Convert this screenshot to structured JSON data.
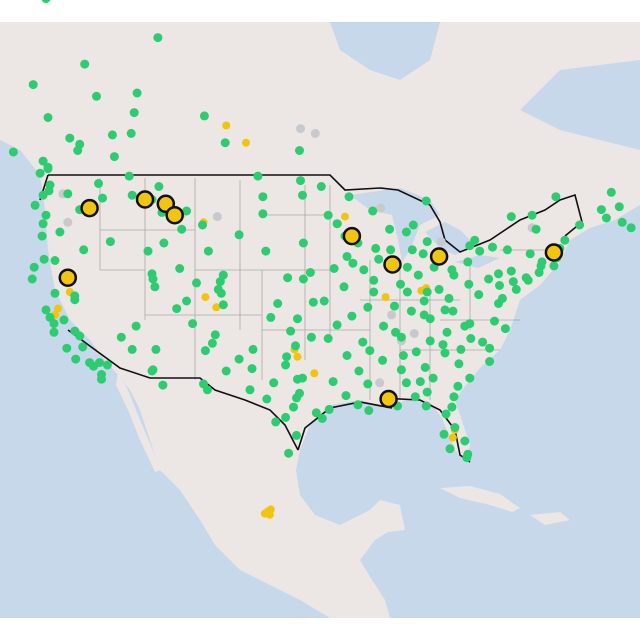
{
  "colors": {
    "water": "#c6d8ea",
    "land": "#ece7e4",
    "border": "#111111",
    "state_lines": "#a9a9a9",
    "green": "#2ecc71",
    "gold": "#f1c40f",
    "gray": "#c7c9cc",
    "highlight": "#f1c40f"
  },
  "markers": {
    "highlighted": [
      [
        40.9,
        -120.5
      ],
      [
        46.0,
        -118.3
      ],
      [
        46.6,
        -112.7
      ],
      [
        46.3,
        -110.6
      ],
      [
        45.5,
        -109.7
      ],
      [
        44.0,
        -91.8
      ],
      [
        41.9,
        -87.7
      ],
      [
        42.5,
        -83.0
      ],
      [
        42.8,
        -71.4
      ],
      [
        31.0,
        -88.1
      ]
    ],
    "gold": [
      [
        20.8,
        -100.3
      ],
      [
        20.6,
        -100.6
      ],
      [
        21.0,
        -100.0
      ],
      [
        20.5,
        -100.1
      ],
      [
        51.5,
        -104.5
      ],
      [
        50.4,
        -102.5
      ],
      [
        39.8,
        -120.3
      ],
      [
        38.5,
        -121.5
      ],
      [
        38.0,
        -121.8
      ],
      [
        39.4,
        -106.6
      ],
      [
        38.6,
        -105.5
      ],
      [
        35.2,
        -97.6
      ],
      [
        34.6,
        -97.3
      ],
      [
        33.2,
        -95.6
      ],
      [
        44.9,
        -93.2
      ],
      [
        45.4,
        -92.5
      ],
      [
        39.4,
        -88.4
      ],
      [
        39.9,
        -84.8
      ],
      [
        40.1,
        -84.3
      ],
      [
        27.6,
        -81.6
      ],
      [
        28.3,
        -81.4
      ],
      [
        45.0,
        -106.8
      ]
    ],
    "gray": [
      [
        51.3,
        -97.0
      ],
      [
        51.0,
        -95.5
      ],
      [
        46.3,
        -118.0
      ],
      [
        47.0,
        -121.0
      ],
      [
        45.0,
        -120.5
      ],
      [
        45.6,
        -109.0
      ],
      [
        45.4,
        -105.4
      ],
      [
        43.6,
        -82.8
      ],
      [
        46.0,
        -88.9
      ],
      [
        44.6,
        -73.6
      ],
      [
        32.4,
        -89.0
      ],
      [
        35.9,
        -86.8
      ],
      [
        38.0,
        -87.8
      ],
      [
        36.5,
        -85.5
      ]
    ],
    "green": [
      [
        47.6,
        -122.3
      ],
      [
        47.2,
        -122.4
      ],
      [
        46.9,
        -123.0
      ],
      [
        48.4,
        -123.3
      ],
      [
        49.2,
        -123.0
      ],
      [
        48.7,
        -122.5
      ],
      [
        46.2,
        -123.8
      ],
      [
        45.5,
        -122.7
      ],
      [
        44.9,
        -123.0
      ],
      [
        44.0,
        -123.1
      ],
      [
        42.3,
        -122.9
      ],
      [
        41.7,
        -123.9
      ],
      [
        40.8,
        -124.1
      ],
      [
        38.4,
        -122.7
      ],
      [
        37.8,
        -122.3
      ],
      [
        37.3,
        -121.9
      ],
      [
        36.6,
        -121.9
      ],
      [
        36.7,
        -119.8
      ],
      [
        35.4,
        -119.0
      ],
      [
        34.4,
        -119.7
      ],
      [
        34.1,
        -118.3
      ],
      [
        33.8,
        -117.9
      ],
      [
        33.1,
        -117.1
      ],
      [
        32.7,
        -117.1
      ],
      [
        34.1,
        -117.3
      ],
      [
        33.9,
        -116.5
      ],
      [
        35.3,
        -120.6
      ],
      [
        39.5,
        -119.8
      ],
      [
        39.2,
        -119.8
      ],
      [
        40.8,
        -111.9
      ],
      [
        41.2,
        -112.0
      ],
      [
        40.2,
        -111.7
      ],
      [
        37.1,
        -113.6
      ],
      [
        36.2,
        -115.1
      ],
      [
        35.2,
        -114.0
      ],
      [
        33.4,
        -112.0
      ],
      [
        33.5,
        -111.9
      ],
      [
        32.2,
        -110.9
      ],
      [
        35.2,
        -111.6
      ],
      [
        35.1,
        -106.6
      ],
      [
        35.7,
        -105.9
      ],
      [
        32.3,
        -106.8
      ],
      [
        31.8,
        -106.4
      ],
      [
        39.7,
        -105.0
      ],
      [
        40.0,
        -105.3
      ],
      [
        38.8,
        -104.8
      ],
      [
        40.6,
        -105.1
      ],
      [
        41.1,
        -104.8
      ],
      [
        42.9,
        -106.3
      ],
      [
        44.8,
        -106.9
      ],
      [
        45.8,
        -108.5
      ],
      [
        46.9,
        -114.0
      ],
      [
        47.5,
        -111.3
      ],
      [
        46.6,
        -112.0
      ],
      [
        45.7,
        -111.0
      ],
      [
        43.6,
        -116.2
      ],
      [
        42.9,
        -112.4
      ],
      [
        47.7,
        -117.4
      ],
      [
        46.7,
        -117.0
      ],
      [
        48.2,
        -114.3
      ],
      [
        48.8,
        -122.5
      ],
      [
        50.7,
        -120.3
      ],
      [
        49.9,
        -119.5
      ],
      [
        51.0,
        -114.1
      ],
      [
        53.5,
        -113.5
      ],
      [
        52.1,
        -106.7
      ],
      [
        50.4,
        -104.6
      ],
      [
        49.9,
        -97.1
      ],
      [
        55.2,
        -118.8
      ],
      [
        56.7,
        -111.4
      ],
      [
        58.8,
        -122.7
      ],
      [
        46.9,
        -96.8
      ],
      [
        46.8,
        -100.8
      ],
      [
        44.1,
        -103.2
      ],
      [
        43.5,
        -96.7
      ],
      [
        41.3,
        -96.0
      ],
      [
        40.8,
        -96.7
      ],
      [
        39.1,
        -94.6
      ],
      [
        38.6,
        -90.2
      ],
      [
        37.2,
        -93.3
      ],
      [
        39.0,
        -95.7
      ],
      [
        37.7,
        -97.3
      ],
      [
        35.5,
        -97.5
      ],
      [
        36.2,
        -95.9
      ],
      [
        35.2,
        -101.8
      ],
      [
        33.6,
        -101.9
      ],
      [
        32.8,
        -96.8
      ],
      [
        32.7,
        -97.3
      ],
      [
        31.5,
        -97.1
      ],
      [
        30.3,
        -97.7
      ],
      [
        29.4,
        -98.5
      ],
      [
        29.8,
        -95.4
      ],
      [
        29.3,
        -94.8
      ],
      [
        27.8,
        -97.4
      ],
      [
        26.2,
        -98.2
      ],
      [
        31.8,
        -102.1
      ],
      [
        30.1,
        -94.1
      ],
      [
        30.5,
        -91.2
      ],
      [
        30.0,
        -90.1
      ],
      [
        32.5,
        -93.7
      ],
      [
        34.7,
        -92.3
      ],
      [
        36.1,
        -94.2
      ],
      [
        35.1,
        -90.0
      ],
      [
        32.3,
        -90.2
      ],
      [
        30.7,
        -88.0
      ],
      [
        33.5,
        -86.8
      ],
      [
        32.4,
        -86.3
      ],
      [
        34.7,
        -86.6
      ],
      [
        36.2,
        -86.8
      ],
      [
        35.0,
        -85.3
      ],
      [
        35.9,
        -83.9
      ],
      [
        38.3,
        -85.8
      ],
      [
        38.0,
        -84.5
      ],
      [
        39.1,
        -84.5
      ],
      [
        39.8,
        -86.2
      ],
      [
        41.1,
        -85.1
      ],
      [
        41.7,
        -86.2
      ],
      [
        41.9,
        -87.6
      ],
      [
        42.3,
        -89.1
      ],
      [
        40.7,
        -89.6
      ],
      [
        39.8,
        -89.6
      ],
      [
        43.1,
        -89.4
      ],
      [
        43.0,
        -87.9
      ],
      [
        44.5,
        -88.0
      ],
      [
        44.9,
        -93.3
      ],
      [
        46.8,
        -92.1
      ],
      [
        44.0,
        -92.5
      ],
      [
        41.6,
        -93.6
      ],
      [
        42.0,
        -91.7
      ],
      [
        41.5,
        -90.6
      ],
      [
        42.5,
        -92.3
      ],
      [
        42.3,
        -83.0
      ],
      [
        42.7,
        -84.6
      ],
      [
        43.0,
        -85.7
      ],
      [
        43.6,
        -84.2
      ],
      [
        44.8,
        -85.6
      ],
      [
        46.5,
        -84.3
      ],
      [
        41.5,
        -81.7
      ],
      [
        41.1,
        -81.5
      ],
      [
        40.0,
        -83.0
      ],
      [
        39.8,
        -84.2
      ],
      [
        41.7,
        -83.5
      ],
      [
        40.4,
        -80.0
      ],
      [
        42.1,
        -80.1
      ],
      [
        40.3,
        -76.9
      ],
      [
        40.0,
        -75.2
      ],
      [
        40.6,
        -75.5
      ],
      [
        41.4,
        -75.7
      ],
      [
        39.3,
        -76.6
      ],
      [
        38.9,
        -77.0
      ],
      [
        37.5,
        -77.4
      ],
      [
        36.9,
        -76.3
      ],
      [
        37.3,
        -79.9
      ],
      [
        38.4,
        -82.4
      ],
      [
        38.3,
        -81.6
      ],
      [
        35.8,
        -78.6
      ],
      [
        36.1,
        -79.8
      ],
      [
        35.2,
        -80.8
      ],
      [
        34.0,
        -81.0
      ],
      [
        32.8,
        -79.9
      ],
      [
        34.9,
        -82.4
      ],
      [
        33.7,
        -84.4
      ],
      [
        32.1,
        -81.1
      ],
      [
        32.8,
        -83.6
      ],
      [
        30.3,
        -81.7
      ],
      [
        30.4,
        -84.3
      ],
      [
        28.5,
        -81.4
      ],
      [
        27.9,
        -82.5
      ],
      [
        26.6,
        -81.9
      ],
      [
        26.1,
        -80.1
      ],
      [
        25.8,
        -80.2
      ],
      [
        29.7,
        -82.3
      ],
      [
        27.3,
        -80.4
      ],
      [
        40.7,
        -74.0
      ],
      [
        40.9,
        -74.2
      ],
      [
        41.3,
        -72.9
      ],
      [
        41.8,
        -72.7
      ],
      [
        42.4,
        -71.1
      ],
      [
        41.8,
        -71.4
      ],
      [
        42.1,
        -72.6
      ],
      [
        42.7,
        -73.8
      ],
      [
        43.0,
        -76.1
      ],
      [
        43.2,
        -77.6
      ],
      [
        42.9,
        -78.9
      ],
      [
        44.5,
        -73.2
      ],
      [
        43.1,
        -70.8
      ],
      [
        43.7,
        -70.3
      ],
      [
        44.8,
        -68.8
      ],
      [
        45.5,
        -73.6
      ],
      [
        46.8,
        -71.2
      ],
      [
        45.4,
        -75.7
      ],
      [
        43.7,
        -79.4
      ],
      [
        43.3,
        -79.9
      ],
      [
        42.3,
        -83.0
      ],
      [
        45.9,
        -66.6
      ],
      [
        46.1,
        -64.8
      ],
      [
        44.6,
        -63.6
      ],
      [
        45.3,
        -66.1
      ],
      [
        46.2,
        -60.2
      ],
      [
        47.1,
        -65.6
      ],
      [
        45.0,
        -64.5
      ],
      [
        49.8,
        -126.0
      ],
      [
        54.0,
        -124.0
      ],
      [
        52.0,
        -122.5
      ],
      [
        50.3,
        -119.3
      ],
      [
        49.5,
        -115.8
      ],
      [
        50.9,
        -116.0
      ],
      [
        52.3,
        -113.8
      ],
      [
        53.3,
        -117.6
      ],
      [
        47.0,
        -120.5
      ],
      [
        45.9,
        -119.3
      ],
      [
        43.0,
        -118.9
      ],
      [
        44.3,
        -121.3
      ],
      [
        42.2,
        -121.8
      ],
      [
        39.7,
        -121.8
      ],
      [
        37.6,
        -120.9
      ],
      [
        36.3,
        -119.3
      ],
      [
        38.5,
        -109.5
      ],
      [
        37.3,
        -107.9
      ],
      [
        39.1,
        -108.5
      ],
      [
        41.6,
        -109.2
      ],
      [
        43.5,
        -110.8
      ],
      [
        44.5,
        -109.0
      ],
      [
        40.5,
        -107.5
      ],
      [
        36.4,
        -105.6
      ],
      [
        33.4,
        -104.5
      ],
      [
        34.4,
        -103.2
      ],
      [
        31.0,
        -100.4
      ],
      [
        29.0,
        -99.5
      ],
      [
        47.9,
        -97.0
      ],
      [
        48.2,
        -101.3
      ],
      [
        45.6,
        -100.8
      ],
      [
        42.9,
        -100.5
      ],
      [
        40.9,
        -98.3
      ],
      [
        38.9,
        -99.3
      ],
      [
        37.8,
        -100.0
      ],
      [
        36.7,
        -98.0
      ],
      [
        34.6,
        -98.4
      ],
      [
        33.9,
        -98.5
      ],
      [
        32.4,
        -99.7
      ],
      [
        31.1,
        -97.4
      ],
      [
        37.1,
        -88.6
      ],
      [
        36.6,
        -87.4
      ],
      [
        34.3,
        -88.7
      ],
      [
        31.3,
        -92.4
      ],
      [
        33.4,
        -91.1
      ],
      [
        35.8,
        -90.7
      ],
      [
        37.9,
        -91.8
      ],
      [
        40.2,
        -92.6
      ],
      [
        43.5,
        -91.2
      ],
      [
        45.5,
        -94.2
      ],
      [
        47.5,
        -94.9
      ],
      [
        45.8,
        -89.7
      ],
      [
        44.3,
        -86.3
      ],
      [
        40.4,
        -86.9
      ],
      [
        38.7,
        -87.5
      ],
      [
        37.7,
        -83.9
      ],
      [
        39.3,
        -82.0
      ],
      [
        40.8,
        -78.0
      ],
      [
        41.2,
        -77.0
      ],
      [
        39.6,
        -79.0
      ],
      [
        37.1,
        -80.4
      ],
      [
        36.6,
        -82.2
      ],
      [
        35.6,
        -82.6
      ],
      [
        35.3,
        -77.9
      ],
      [
        34.2,
        -77.9
      ],
      [
        32.5,
        -84.9
      ],
      [
        31.6,
        -84.2
      ],
      [
        31.2,
        -81.5
      ],
      [
        30.4,
        -87.2
      ],
      [
        31.2,
        -85.4
      ]
    ]
  }
}
